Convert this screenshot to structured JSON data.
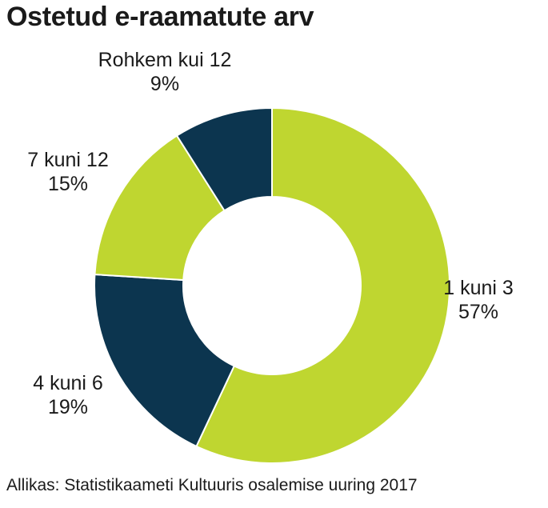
{
  "title": "Ostetud e-raamatute arv",
  "source": "Allikas: Statistikaameti Kultuuris osalemise uuring 2017",
  "colors": {
    "lime": "#bfd630",
    "navy": "#0c354f",
    "separator": "#ffffff"
  },
  "chart_data": {
    "type": "pie",
    "variant": "donut",
    "title": "Ostetud e-raamatute arv",
    "categories": [
      "1 kuni 3",
      "4 kuni 6",
      "7 kuni 12",
      "Rohkem kui 12"
    ],
    "values": [
      57,
      19,
      15,
      9
    ],
    "value_labels": [
      "57%",
      "19%",
      "15%",
      "9%"
    ],
    "slice_colors": [
      "#bfd630",
      "#0c354f",
      "#bfd630",
      "#0c354f"
    ],
    "start": "12 o'clock",
    "direction": "clockwise",
    "legend": "none"
  }
}
